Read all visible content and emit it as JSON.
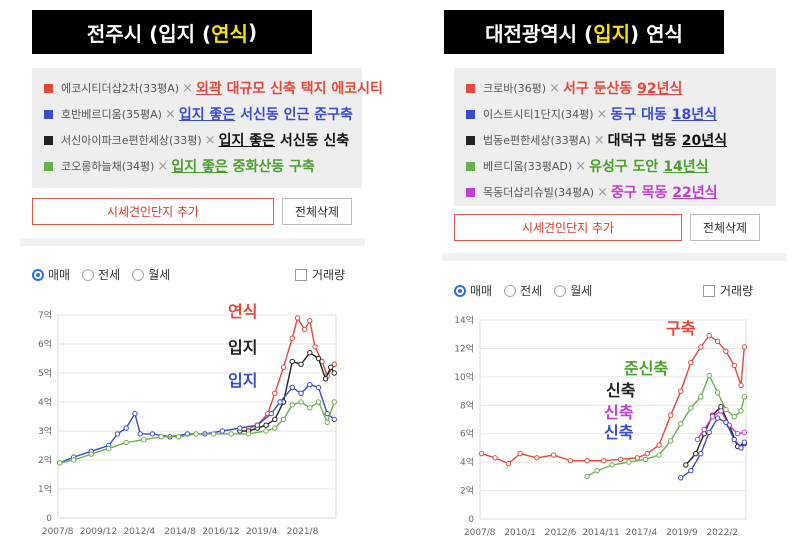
{
  "left": {
    "title": {
      "pre": "전주시 (입지 ( ",
      "hl": "연식",
      "post": ")"
    },
    "legend": [
      {
        "color": "#e8473a",
        "name": "에코시티더샵2차(33평A)",
        "note": "외곽 대규모 신축 택지 에코시티",
        "note_color": "#e8473a",
        "underline": "외곽"
      },
      {
        "color": "#3a4bd6",
        "name": "호반베르디움(35평A)",
        "note": "입지 좋은 서신동 인근 준구축",
        "note_color": "#3a4bd6",
        "underline": "입지 좋은"
      },
      {
        "color": "#222222",
        "name": "서신아이파크e편한세상(33평)",
        "note": "입지 좋은 서신동 신축",
        "note_color": "#111111",
        "underline": "입지 좋은"
      },
      {
        "color": "#6ab04c",
        "name": "코오롱하늘채(34평)",
        "note": "입지 좋은 중화산동 구축",
        "note_color": "#4aa02c",
        "underline": "입지 좋은"
      }
    ],
    "buttons": {
      "add": "시세견인단지 추가",
      "delete": "전체삭제"
    },
    "radios": [
      "매매",
      "전세",
      "월세"
    ],
    "checkbox": "거래량",
    "annotations": [
      {
        "text": "연식",
        "color": "#e8473a"
      },
      {
        "text": "입지",
        "color": "#222222"
      },
      {
        "text": "입지",
        "color": "#3a4bd6"
      }
    ]
  },
  "right": {
    "title": {
      "pre": "대전광역시 (",
      "hl": "입지",
      "post": " ) 연식"
    },
    "legend": [
      {
        "color": "#e8473a",
        "name": "크로바(36평)",
        "note": "서구 둔산동 92년식",
        "note_color": "#e8473a",
        "underline": "92년식"
      },
      {
        "color": "#3a4bd6",
        "name": "이스트시티1단지(34평)",
        "note": "동구 대동 18년식",
        "note_color": "#3a4bd6",
        "underline": "18년식"
      },
      {
        "color": "#222222",
        "name": "법동e편한세상(33평A)",
        "note": "대덕구 법동 20년식",
        "note_color": "#111111",
        "underline": "20년식"
      },
      {
        "color": "#6ab04c",
        "name": "베르디움(33평AD)",
        "note": "유성구 도안 14년식",
        "note_color": "#4aa02c",
        "underline": "14년식"
      },
      {
        "color": "#c23fd0",
        "name": "목동더샵리슈빌(34평A)",
        "note": "중구 목동 22년식",
        "note_color": "#c23fd0",
        "underline": "22년식"
      }
    ],
    "buttons": {
      "add": "시세견인단지 추가",
      "delete": "전체삭제"
    },
    "radios": [
      "매매",
      "전세",
      "월세"
    ],
    "checkbox": "거래량",
    "annotations": [
      {
        "text": "구축",
        "color": "#e8473a"
      },
      {
        "text": "준신축",
        "color": "#4aa02c"
      },
      {
        "text": "신축",
        "color": "#222222"
      },
      {
        "text": "신축",
        "color": "#c23fd0"
      },
      {
        "text": "신축",
        "color": "#3a4bd6"
      }
    ]
  },
  "chart_data": [
    {
      "type": "line",
      "x_ticks": [
        "2007/8",
        "2009/12",
        "2012/4",
        "2014/8",
        "2016/12",
        "2019/4",
        "2021/8"
      ],
      "y_ticks": [
        "0",
        "1억",
        "2억",
        "3억",
        "4억",
        "5억",
        "6억",
        "7억"
      ],
      "ylim": [
        0,
        7
      ],
      "xlim": [
        2007.6,
        2023.5
      ],
      "grid": true,
      "series": [
        {
          "color": "#e8473a",
          "x": [
            2018.5,
            2019.0,
            2019.6,
            2020.0,
            2020.5,
            2021.0,
            2021.3,
            2021.7,
            2022.0,
            2022.3,
            2022.7,
            2023.0,
            2023.4
          ],
          "y": [
            3.1,
            3.2,
            3.6,
            4.3,
            5.2,
            6.2,
            6.9,
            6.5,
            6.8,
            5.9,
            5.4,
            4.9,
            5.3
          ]
        },
        {
          "color": "#222222",
          "x": [
            2018.0,
            2018.5,
            2019.0,
            2019.5,
            2020.0,
            2020.5,
            2021.0,
            2021.5,
            2022.0,
            2022.5,
            2022.9,
            2023.2,
            2023.4
          ],
          "y": [
            3.0,
            3.0,
            3.1,
            3.2,
            3.4,
            4.0,
            5.4,
            5.3,
            5.7,
            5.5,
            4.8,
            5.2,
            5.0
          ]
        },
        {
          "color": "#3a4bd6",
          "x": [
            2007.7,
            2008.5,
            2009.5,
            2010.5,
            2011.0,
            2011.5,
            2012.0,
            2012.3,
            2013.0,
            2014.0,
            2015.0,
            2016.0,
            2017.0,
            2018.0,
            2019.0,
            2019.8,
            2020.3,
            2021.0,
            2021.5,
            2022.0,
            2022.5,
            2023.0,
            2023.4
          ],
          "y": [
            1.9,
            2.1,
            2.3,
            2.5,
            2.9,
            3.1,
            3.6,
            2.9,
            2.9,
            2.8,
            2.9,
            2.9,
            3.0,
            3.1,
            3.2,
            3.6,
            4.0,
            4.5,
            4.3,
            4.6,
            4.5,
            3.6,
            3.4
          ]
        },
        {
          "color": "#6ab04c",
          "x": [
            2007.7,
            2008.5,
            2009.5,
            2010.5,
            2011.5,
            2012.5,
            2013.5,
            2014.5,
            2015.5,
            2016.5,
            2017.5,
            2018.5,
            2019.5,
            2020.0,
            2020.5,
            2021.0,
            2021.5,
            2022.0,
            2022.5,
            2023.0,
            2023.4
          ],
          "y": [
            1.9,
            2.0,
            2.2,
            2.4,
            2.6,
            2.7,
            2.8,
            2.8,
            2.9,
            2.9,
            2.9,
            2.9,
            3.0,
            3.1,
            3.4,
            3.9,
            4.0,
            3.8,
            4.0,
            3.3,
            4.0
          ]
        }
      ]
    },
    {
      "type": "line",
      "x_ticks": [
        "2007/8",
        "2010/1",
        "2012/6",
        "2014/11",
        "2017/4",
        "2019/9",
        "2022/2"
      ],
      "y_ticks": [
        "0",
        "2억",
        "4억",
        "6억",
        "8억",
        "10억",
        "12억",
        "14억"
      ],
      "ylim": [
        0,
        14
      ],
      "xlim": [
        2007.6,
        2023.5
      ],
      "grid": true,
      "series": [
        {
          "color": "#e8473a",
          "x": [
            2007.7,
            2008.5,
            2009.3,
            2010.0,
            2011.0,
            2012.0,
            2013.0,
            2014.0,
            2015.0,
            2016.0,
            2017.0,
            2017.6,
            2018.3,
            2019.0,
            2019.6,
            2020.2,
            2020.8,
            2021.3,
            2021.8,
            2022.3,
            2022.8,
            2023.2,
            2023.4
          ],
          "y": [
            4.6,
            4.3,
            3.9,
            4.6,
            4.3,
            4.5,
            4.1,
            4.1,
            4.1,
            4.2,
            4.3,
            4.6,
            5.2,
            7.3,
            9.0,
            11.0,
            12.1,
            12.9,
            12.5,
            11.8,
            10.8,
            9.4,
            12.1
          ]
        },
        {
          "color": "#6ab04c",
          "x": [
            2014.0,
            2014.6,
            2015.5,
            2016.5,
            2017.5,
            2018.3,
            2019.0,
            2019.6,
            2020.2,
            2020.8,
            2021.3,
            2021.8,
            2022.3,
            2022.8,
            2023.2,
            2023.4
          ],
          "y": [
            3.0,
            3.4,
            3.8,
            4.0,
            4.2,
            4.5,
            5.5,
            6.7,
            7.8,
            8.6,
            10.1,
            8.9,
            7.7,
            7.2,
            7.6,
            8.6
          ]
        },
        {
          "color": "#222222",
          "x": [
            2019.9,
            2020.5,
            2021.0,
            2021.5,
            2022.0,
            2022.5,
            2023.0,
            2023.4
          ],
          "y": [
            3.8,
            4.6,
            6.0,
            7.3,
            7.9,
            6.6,
            5.1,
            5.3
          ]
        },
        {
          "color": "#c23fd0",
          "x": [
            2020.6,
            2021.0,
            2021.5,
            2022.0,
            2022.5,
            2023.0,
            2023.4
          ],
          "y": [
            5.6,
            6.3,
            7.2,
            7.6,
            6.6,
            6.0,
            6.1
          ]
        },
        {
          "color": "#3a4bd6",
          "x": [
            2019.6,
            2020.2,
            2020.8,
            2021.3,
            2021.8,
            2022.3,
            2022.8,
            2023.2,
            2023.4
          ],
          "y": [
            2.9,
            3.4,
            4.6,
            6.1,
            7.1,
            6.8,
            5.6,
            5.0,
            5.4
          ]
        }
      ]
    }
  ]
}
